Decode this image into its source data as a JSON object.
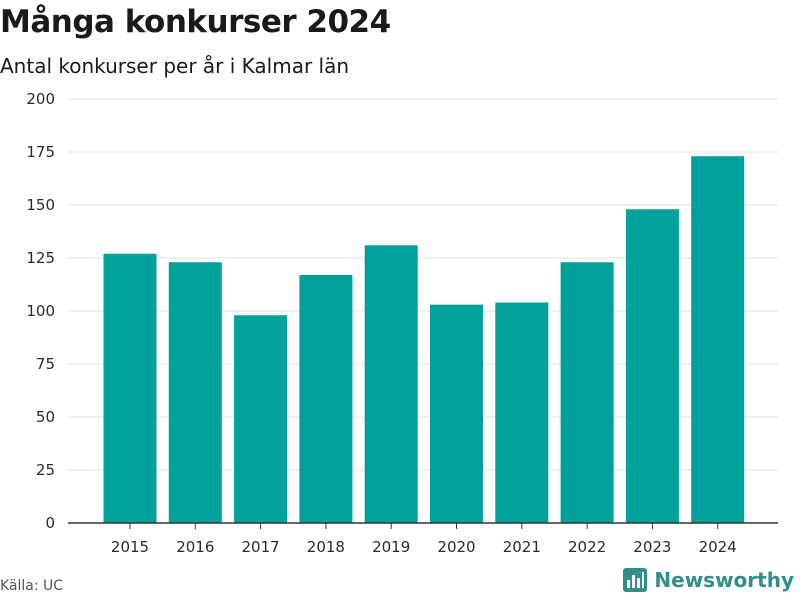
{
  "header": {
    "title": "Många konkurser 2024",
    "subtitle": "Antal konkurser per år i Kalmar län"
  },
  "footer": {
    "source": "Källa: UC",
    "brand": "Newsworthy"
  },
  "colors": {
    "bar": "#00a19a",
    "brand": "#2f8f8a",
    "grid": "#e2e2e2"
  },
  "icons": {
    "brand_logo": "bar-chart-logo-icon"
  },
  "chart_data": {
    "type": "bar",
    "categories": [
      "2015",
      "2016",
      "2017",
      "2018",
      "2019",
      "2020",
      "2021",
      "2022",
      "2023",
      "2024"
    ],
    "values": [
      127,
      123,
      98,
      117,
      131,
      103,
      104,
      123,
      148,
      173
    ],
    "title": "Många konkurser 2024",
    "subtitle": "Antal konkurser per år i Kalmar län",
    "xlabel": "",
    "ylabel": "",
    "ylim": [
      0,
      200
    ],
    "yticks": [
      0,
      25,
      50,
      75,
      100,
      125,
      150,
      175,
      200
    ],
    "grid": true,
    "legend": "none"
  }
}
